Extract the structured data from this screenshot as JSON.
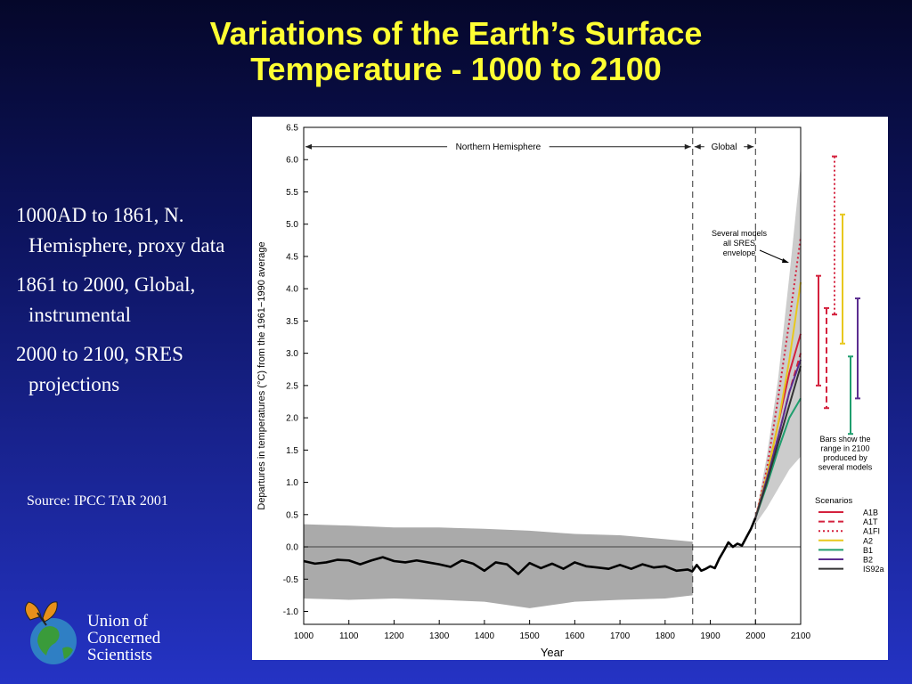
{
  "slide": {
    "title_line1": "Variations of the Earth’s Surface",
    "title_line2": "Temperature - 1000 to 2100",
    "bullets": [
      "1000AD to 1861, N. Hemisphere, proxy data",
      "1861 to 2000, Global, instrumental",
      "2000 to 2100, SRES projections"
    ],
    "source": "Source: IPCC TAR 2001",
    "logo_lines": [
      "Union of",
      "Concerned",
      "Scientists"
    ]
  },
  "colors": {
    "title": "#ffff33",
    "A1B": "#d4213d",
    "A1T": "#d4213d",
    "A1FI": "#d4213d",
    "A2": "#e8c81e",
    "B1": "#1f9e6e",
    "B2": "#5b2d90",
    "IS92a": "#333333",
    "envelope": "#cccccc",
    "proxy_band": "#aaaaaa"
  },
  "chart_data": {
    "type": "line",
    "xlabel": "Year",
    "ylabel": "Departures in temperatures (°C) from the 1961−1990 average",
    "xlim": [
      1000,
      2100
    ],
    "ylim": [
      -1.2,
      6.5
    ],
    "x_ticks": [
      1000,
      1100,
      1200,
      1300,
      1400,
      1500,
      1600,
      1700,
      1800,
      1900,
      2000,
      2100
    ],
    "y_ticks": [
      "6.5",
      "6.0",
      "5.5",
      "5.0",
      "4.5",
      "4.0",
      "3.5",
      "3.0",
      "2.5",
      "2.0",
      "1.5",
      "1.0",
      "0.5",
      "0.0",
      "-0.5",
      "-1.0"
    ],
    "regions": [
      {
        "label": "Northern Hemisphere",
        "from": 1000,
        "to": 1861
      },
      {
        "label": "Global",
        "from": 1861,
        "to": 2000
      }
    ],
    "annotation": "Several models all SRES envelope",
    "bars_note": "Bars show the range in 2100 produced by several models",
    "legend_title": "Scenarios",
    "legend_position": "right",
    "observed": {
      "x": [
        1000,
        1025,
        1050,
        1075,
        1100,
        1125,
        1150,
        1175,
        1200,
        1225,
        1250,
        1275,
        1300,
        1325,
        1350,
        1375,
        1400,
        1425,
        1450,
        1475,
        1500,
        1525,
        1550,
        1575,
        1600,
        1625,
        1650,
        1675,
        1700,
        1725,
        1750,
        1775,
        1800,
        1825,
        1850,
        1860,
        1870,
        1880,
        1890,
        1900,
        1910,
        1920,
        1930,
        1940,
        1950,
        1960,
        1970,
        1980,
        1990,
        2000
      ],
      "y": [
        -0.22,
        -0.26,
        -0.24,
        -0.2,
        -0.21,
        -0.27,
        -0.21,
        -0.16,
        -0.22,
        -0.24,
        -0.21,
        -0.24,
        -0.27,
        -0.31,
        -0.21,
        -0.26,
        -0.37,
        -0.24,
        -0.27,
        -0.42,
        -0.25,
        -0.33,
        -0.26,
        -0.34,
        -0.24,
        -0.3,
        -0.32,
        -0.34,
        -0.28,
        -0.34,
        -0.27,
        -0.32,
        -0.3,
        -0.37,
        -0.35,
        -0.38,
        -0.28,
        -0.37,
        -0.34,
        -0.3,
        -0.33,
        -0.18,
        -0.06,
        0.07,
        0.0,
        0.05,
        0.02,
        0.15,
        0.28,
        0.45
      ]
    },
    "proxy_range": {
      "x": [
        1000,
        1100,
        1200,
        1300,
        1400,
        1500,
        1600,
        1700,
        1800,
        1861
      ],
      "upper": [
        0.35,
        0.33,
        0.3,
        0.3,
        0.28,
        0.25,
        0.2,
        0.18,
        0.12,
        0.08
      ],
      "lower": [
        -0.8,
        -0.82,
        -0.8,
        -0.82,
        -0.85,
        -0.95,
        -0.85,
        -0.82,
        -0.8,
        -0.75
      ]
    },
    "envelope": {
      "x": [
        2000,
        2025,
        2050,
        2075,
        2100
      ],
      "upper": [
        0.45,
        1.4,
        2.6,
        4.2,
        5.9
      ],
      "lower": [
        0.35,
        0.6,
        0.9,
        1.2,
        1.4
      ]
    },
    "projections": [
      {
        "name": "A1B",
        "style": "solid",
        "x": [
          2000,
          2025,
          2050,
          2075,
          2100
        ],
        "y": [
          0.45,
          1.1,
          1.9,
          2.7,
          3.3
        ]
      },
      {
        "name": "A1T",
        "style": "dashed",
        "x": [
          2000,
          2025,
          2050,
          2075,
          2100
        ],
        "y": [
          0.45,
          1.1,
          1.7,
          2.4,
          3.0
        ]
      },
      {
        "name": "A1FI",
        "style": "dotted",
        "x": [
          2000,
          2025,
          2050,
          2075,
          2100
        ],
        "y": [
          0.45,
          1.2,
          2.3,
          3.5,
          4.8
        ]
      },
      {
        "name": "A2",
        "style": "solid",
        "x": [
          2000,
          2025,
          2050,
          2075,
          2100
        ],
        "y": [
          0.45,
          1.1,
          1.9,
          2.9,
          4.1
        ]
      },
      {
        "name": "B1",
        "style": "solid",
        "x": [
          2000,
          2025,
          2050,
          2075,
          2100
        ],
        "y": [
          0.45,
          0.95,
          1.5,
          2.0,
          2.3
        ]
      },
      {
        "name": "B2",
        "style": "solid",
        "x": [
          2000,
          2025,
          2050,
          2075,
          2100
        ],
        "y": [
          0.45,
          1.05,
          1.7,
          2.4,
          2.9
        ]
      },
      {
        "name": "IS92a",
        "style": "solid",
        "x": [
          2000,
          2025,
          2050,
          2075,
          2100
        ],
        "y": [
          0.45,
          1.0,
          1.6,
          2.2,
          2.8
        ]
      }
    ],
    "range_bars_2100": [
      {
        "name": "A1B",
        "low": 2.5,
        "high": 4.2
      },
      {
        "name": "A1T",
        "low": 2.15,
        "high": 3.7
      },
      {
        "name": "A1FI",
        "low": 3.6,
        "high": 6.05
      },
      {
        "name": "A2",
        "low": 3.15,
        "high": 5.15
      },
      {
        "name": "B1",
        "low": 1.75,
        "high": 2.95
      },
      {
        "name": "B2",
        "low": 2.3,
        "high": 3.85
      }
    ]
  }
}
